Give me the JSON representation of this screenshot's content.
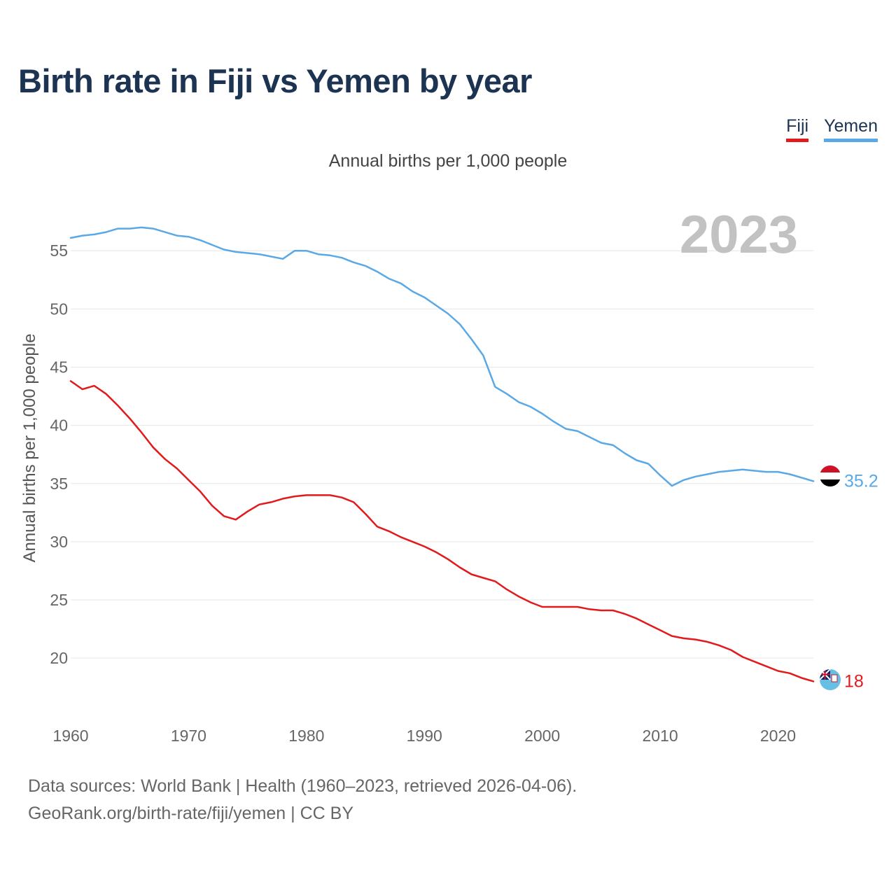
{
  "title": "Birth rate in Fiji vs Yemen by year",
  "subtitle": "Annual births per 1,000 people",
  "legend": [
    {
      "label": "Fiji",
      "color": "#e31a1c"
    },
    {
      "label": "Yemen",
      "color": "#5aa9e6"
    }
  ],
  "source": {
    "line1": "Data sources: World Bank | Health (1960–2023, retrieved 2026-04-06).",
    "line2": "GeoRank.org/birth-rate/fiji/yemen | CC BY"
  },
  "chart_data": {
    "type": "line",
    "title": "Birth rate in Fiji vs Yemen by year",
    "ylabel": "Annual births per 1,000 people",
    "xlabel": "",
    "current_year": "2023",
    "xlim": [
      1960,
      2023
    ],
    "ylim": [
      15.2,
      58.5
    ],
    "x_ticks": [
      1960,
      1970,
      1980,
      1990,
      2000,
      2010,
      2020
    ],
    "y_ticks": [
      20,
      25,
      30,
      35,
      40,
      45,
      50,
      55
    ],
    "grid": true,
    "x": [
      1960,
      1961,
      1962,
      1963,
      1964,
      1965,
      1966,
      1967,
      1968,
      1969,
      1970,
      1971,
      1972,
      1973,
      1974,
      1975,
      1976,
      1977,
      1978,
      1979,
      1980,
      1981,
      1982,
      1983,
      1984,
      1985,
      1986,
      1987,
      1988,
      1989,
      1990,
      1991,
      1992,
      1993,
      1994,
      1995,
      1996,
      1997,
      1998,
      1999,
      2000,
      2001,
      2002,
      2003,
      2004,
      2005,
      2006,
      2007,
      2008,
      2009,
      2010,
      2011,
      2012,
      2013,
      2014,
      2015,
      2016,
      2017,
      2018,
      2019,
      2020,
      2021,
      2022,
      2023
    ],
    "series": [
      {
        "name": "Fiji",
        "color": "#e31a1c",
        "end_label": "18",
        "values": [
          43.8,
          43.1,
          43.4,
          42.7,
          41.7,
          40.6,
          39.4,
          38.1,
          37.1,
          36.3,
          35.3,
          34.3,
          33.1,
          32.2,
          31.9,
          32.6,
          33.2,
          33.4,
          33.7,
          33.9,
          34.0,
          34.0,
          34.0,
          33.8,
          33.4,
          32.4,
          31.3,
          30.9,
          30.4,
          30.0,
          29.6,
          29.1,
          28.5,
          27.8,
          27.2,
          26.9,
          26.6,
          25.9,
          25.3,
          24.8,
          24.4,
          24.4,
          24.4,
          24.4,
          24.2,
          24.1,
          24.1,
          23.8,
          23.4,
          22.9,
          22.4,
          21.9,
          21.7,
          21.6,
          21.4,
          21.1,
          20.7,
          20.1,
          19.7,
          19.3,
          18.9,
          18.7,
          18.3,
          18.0
        ]
      },
      {
        "name": "Yemen",
        "color": "#5aa9e6",
        "end_label": "35.2",
        "values": [
          56.1,
          56.3,
          56.4,
          56.6,
          56.9,
          56.9,
          57.0,
          56.9,
          56.6,
          56.3,
          56.2,
          55.9,
          55.5,
          55.1,
          54.9,
          54.8,
          54.7,
          54.5,
          54.3,
          55.0,
          55.0,
          54.7,
          54.6,
          54.4,
          54.0,
          53.7,
          53.2,
          52.6,
          52.2,
          51.5,
          51.0,
          50.3,
          49.6,
          48.7,
          47.4,
          46.0,
          43.3,
          42.7,
          42.0,
          41.6,
          41.0,
          40.3,
          39.7,
          39.5,
          39.0,
          38.5,
          38.3,
          37.6,
          37.0,
          36.7,
          35.7,
          34.8,
          35.3,
          35.6,
          35.8,
          36.0,
          36.1,
          36.2,
          36.1,
          36.0,
          36.0,
          35.8,
          35.5,
          35.2
        ]
      }
    ]
  }
}
